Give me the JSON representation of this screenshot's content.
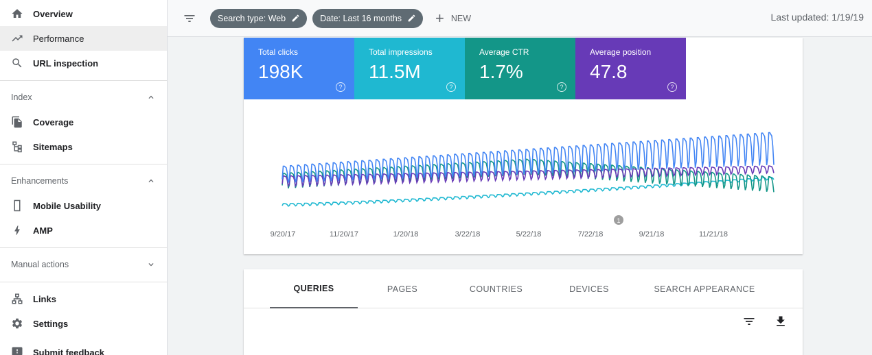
{
  "sidebar": {
    "items_top": [
      {
        "label": "Overview",
        "icon": "home-icon"
      },
      {
        "label": "Performance",
        "icon": "trending-up-icon",
        "active": true
      },
      {
        "label": "URL inspection",
        "icon": "search-icon"
      }
    ],
    "index": {
      "header": "Index",
      "items": [
        {
          "label": "Coverage",
          "icon": "copy-icon"
        },
        {
          "label": "Sitemaps",
          "icon": "sitemap-icon"
        }
      ]
    },
    "enhancements": {
      "header": "Enhancements",
      "items": [
        {
          "label": "Mobile Usability",
          "icon": "phone-icon"
        },
        {
          "label": "AMP",
          "icon": "bolt-icon"
        }
      ]
    },
    "manual_actions": {
      "header": "Manual actions"
    },
    "items_bottom": [
      {
        "label": "Links",
        "icon": "links-icon"
      },
      {
        "label": "Settings",
        "icon": "gear-icon"
      },
      {
        "label": "Submit feedback",
        "icon": "feedback-icon"
      }
    ]
  },
  "topbar": {
    "chip_search_type": "Search type: Web",
    "chip_date": "Date: Last 16 months",
    "new_label": "NEW",
    "last_updated": "Last updated: 1/19/19"
  },
  "metrics": [
    {
      "label": "Total clicks",
      "value": "198K",
      "color": "#4285f4"
    },
    {
      "label": "Total impressions",
      "value": "11.5M",
      "color": "#1fb8d1"
    },
    {
      "label": "Average CTR",
      "value": "1.7%",
      "color": "#139688"
    },
    {
      "label": "Average position",
      "value": "47.8",
      "color": "#673ab7"
    }
  ],
  "chart_data": {
    "type": "line",
    "x_tick_labels": [
      "9/20/17",
      "11/20/17",
      "1/20/18",
      "3/22/18",
      "5/22/18",
      "7/22/18",
      "9/21/18",
      "11/21/18"
    ],
    "annotation": "1",
    "series": [
      {
        "name": "Total clicks",
        "color": "#4285f4"
      },
      {
        "name": "Total impressions",
        "color": "#1fb8d1"
      },
      {
        "name": "Average CTR",
        "color": "#139688"
      },
      {
        "name": "Average position",
        "color": "#673ab7"
      }
    ],
    "weeks": 69,
    "clicks_relative": {
      "start": 0.5,
      "end": 0.82
    },
    "position_relative": {
      "start": 0.25,
      "end": 0.4
    },
    "ctr_relative": {
      "start": 0.22,
      "mid": 0.38,
      "end": 0.18
    },
    "impressions_relative": {
      "start": 0.03,
      "end": 0.33
    }
  },
  "tabs": [
    {
      "label": "QUERIES",
      "active": true
    },
    {
      "label": "PAGES"
    },
    {
      "label": "COUNTRIES"
    },
    {
      "label": "DEVICES"
    },
    {
      "label": "SEARCH APPEARANCE"
    }
  ],
  "table_tools": {
    "filter_icon": "filter-icon",
    "download_icon": "download-icon"
  }
}
